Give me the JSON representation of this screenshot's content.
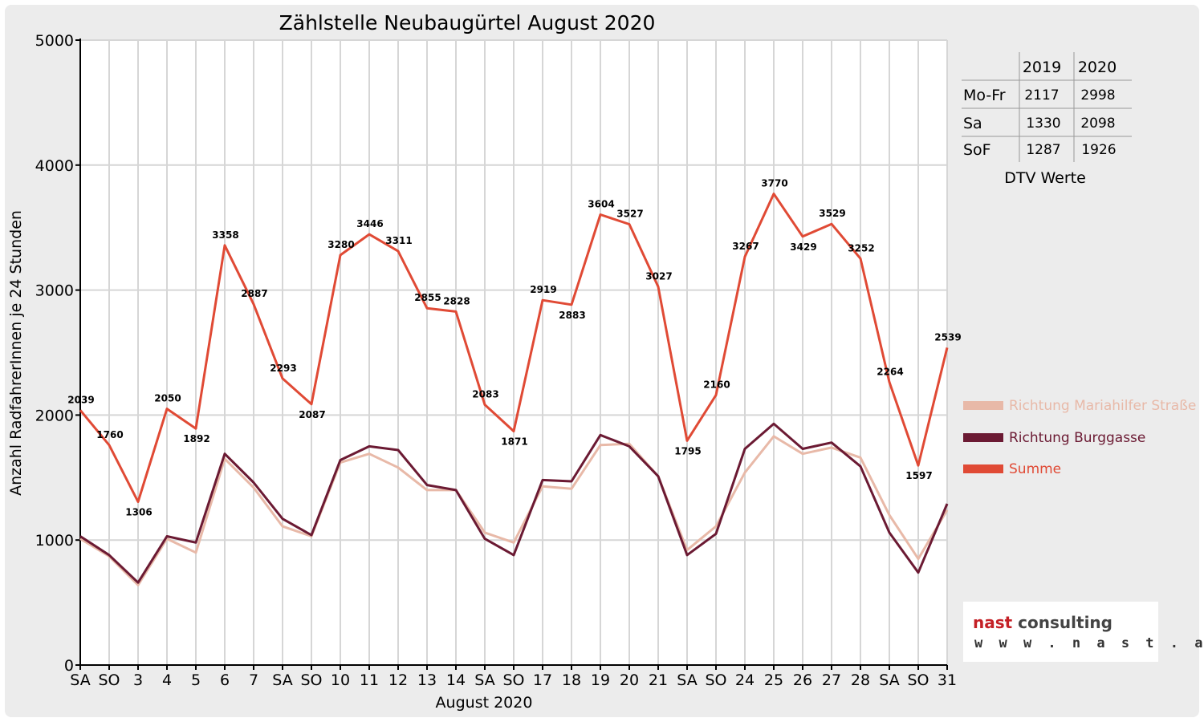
{
  "chart_data": {
    "type": "line",
    "title": "Zählstelle Neubaugürtel August 2020",
    "xlabel": "August 2020",
    "ylabel": "Anzahl RadfahrerInnen je 24 Stunden",
    "ylim": [
      0,
      5000
    ],
    "yticks": [
      "0",
      "1000",
      "2000",
      "3000",
      "4000",
      "5000"
    ],
    "grid": true,
    "legend_position": "right",
    "categories": [
      "SA",
      "SO",
      "3",
      "4",
      "5",
      "6",
      "7",
      "SA",
      "SO",
      "10",
      "11",
      "12",
      "13",
      "14",
      "SA",
      "SO",
      "17",
      "18",
      "19",
      "20",
      "21",
      "SA",
      "SO",
      "24",
      "25",
      "26",
      "27",
      "28",
      "SA",
      "SO",
      "31"
    ],
    "category_colors": [
      "#000000",
      "#e00000",
      "#000000",
      "#000000",
      "#000000",
      "#000000",
      "#000000",
      "#000000",
      "#e00000",
      "#000000",
      "#000000",
      "#000000",
      "#000000",
      "#000000",
      "#000000",
      "#e00000",
      "#000000",
      "#000000",
      "#000000",
      "#000000",
      "#000000",
      "#000000",
      "#e00000",
      "#000000",
      "#000000",
      "#000000",
      "#000000",
      "#000000",
      "#000000",
      "#e00000",
      "#000000"
    ],
    "series": [
      {
        "name": "Richtung Mariahilfer Straße",
        "color": "#e8b9a8",
        "values": [
          1010,
          870,
          640,
          1010,
          900,
          1650,
          1420,
          1110,
          1030,
          1620,
          1690,
          1580,
          1400,
          1400,
          1060,
          980,
          1430,
          1410,
          1760,
          1770,
          1510,
          920,
          1110,
          1540,
          1830,
          1690,
          1740,
          1660,
          1200,
          850,
          1240
        ]
      },
      {
        "name": "Richtung Burggasse",
        "color": "#6b1a33",
        "values": [
          1030,
          880,
          660,
          1030,
          980,
          1690,
          1460,
          1170,
          1040,
          1640,
          1750,
          1720,
          1440,
          1400,
          1010,
          880,
          1480,
          1470,
          1840,
          1750,
          1510,
          880,
          1050,
          1730,
          1930,
          1730,
          1780,
          1590,
          1060,
          740,
          1290
        ]
      },
      {
        "name": "Summe",
        "color": "#e04a35",
        "values": [
          2039,
          1760,
          1306,
          2050,
          1892,
          3358,
          2887,
          2293,
          2087,
          3280,
          3446,
          3311,
          2855,
          2828,
          2083,
          1871,
          2919,
          2883,
          3604,
          3527,
          3027,
          1795,
          2160,
          3267,
          3770,
          3429,
          3529,
          3252,
          2264,
          1597,
          2539
        ]
      }
    ],
    "data_labels": [
      "2039",
      "1760",
      "1306",
      "2050",
      "1892",
      "3358",
      "2887",
      "2293",
      "2087",
      "3280",
      "3446",
      "3311",
      "2855",
      "2828",
      "2083",
      "1871",
      "2919",
      "2883",
      "3604",
      "3527",
      "3027",
      "1795",
      "2160",
      "3267",
      "3770",
      "3429",
      "3529",
      "3252",
      "2264",
      "1597",
      "2539"
    ]
  },
  "dtv_table": {
    "headers": [
      "",
      "2019",
      "2020"
    ],
    "rows": [
      {
        "label": "Mo-Fr",
        "y2019": "2117",
        "y2020": "2998"
      },
      {
        "label": "Sa",
        "y2019": "1330",
        "y2020": "2098"
      },
      {
        "label": "SoF",
        "y2019": "1287",
        "y2020": "1926"
      }
    ],
    "caption": "DTV Werte"
  },
  "logo": {
    "brand_part1": "nast",
    "brand_part2": "consulting",
    "url": "w w w . n a s t . a t"
  }
}
